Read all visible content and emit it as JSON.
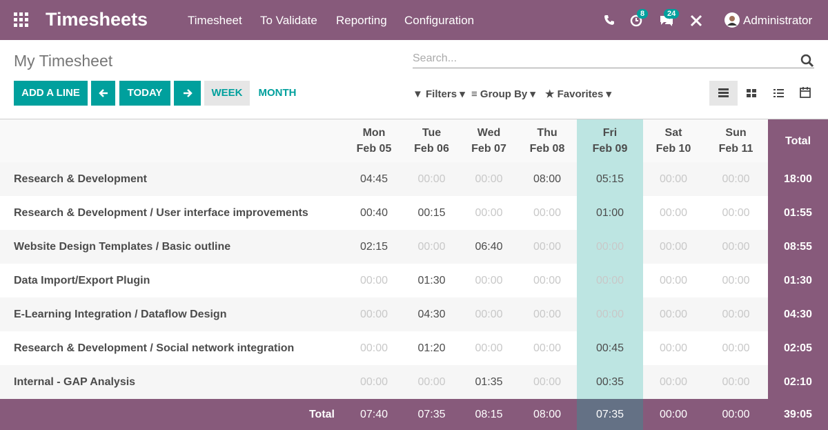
{
  "navbar": {
    "app": "Timesheets",
    "menu": [
      "Timesheet",
      "To Validate",
      "Reporting",
      "Configuration"
    ],
    "badges": [
      "8",
      "24"
    ],
    "user": "Administrator"
  },
  "control_panel": {
    "title": "My Timesheet",
    "search_placeholder": "Search...",
    "buttons": [
      "ADD A LINE",
      "TODAY",
      "WEEK",
      "MONTH"
    ],
    "filters": [
      "Filters",
      "Group By",
      "Favorites"
    ]
  },
  "table": {
    "columns": [
      {
        "day": "Mon",
        "date": "Feb 05"
      },
      {
        "day": "Tue",
        "date": "Feb 06"
      },
      {
        "day": "Wed",
        "date": "Feb 07"
      },
      {
        "day": "Thu",
        "date": "Feb 08"
      },
      {
        "day": "Fri",
        "date": "Feb 09"
      },
      {
        "day": "Sat",
        "date": "Feb 10"
      },
      {
        "day": "Sun",
        "date": "Feb 11"
      }
    ],
    "total_label": "Total",
    "rows": [
      {
        "label": "Research & Development",
        "cells": [
          "04:45",
          "00:00",
          "00:00",
          "08:00",
          "05:15",
          "00:00",
          "00:00"
        ],
        "total": "18:00"
      },
      {
        "label": "Research & Development /  User interface improvements",
        "cells": [
          "00:40",
          "00:15",
          "00:00",
          "00:00",
          "01:00",
          "00:00",
          "00:00"
        ],
        "total": "01:55"
      },
      {
        "label": "Website Design Templates /  Basic outline",
        "cells": [
          "02:15",
          "00:00",
          "06:40",
          "00:00",
          "00:00",
          "00:00",
          "00:00"
        ],
        "total": "08:55"
      },
      {
        "label": "Data Import/Export Plugin",
        "cells": [
          "00:00",
          "01:30",
          "00:00",
          "00:00",
          "00:00",
          "00:00",
          "00:00"
        ],
        "total": "01:30"
      },
      {
        "label": "E-Learning Integration /  Dataflow Design",
        "cells": [
          "00:00",
          "04:30",
          "00:00",
          "00:00",
          "00:00",
          "00:00",
          "00:00"
        ],
        "total": "04:30"
      },
      {
        "label": "Research & Development /  Social network integration",
        "cells": [
          "00:00",
          "01:20",
          "00:00",
          "00:00",
          "00:45",
          "00:00",
          "00:00"
        ],
        "total": "02:05"
      },
      {
        "label": "Internal - GAP Analysis",
        "cells": [
          "00:00",
          "00:00",
          "01:35",
          "00:00",
          "00:35",
          "00:00",
          "00:00"
        ],
        "total": "02:10"
      }
    ],
    "footer": {
      "label": "Total",
      "cells": [
        "07:40",
        "07:35",
        "08:15",
        "08:00",
        "07:35",
        "00:00",
        "00:00"
      ],
      "total": "39:05"
    }
  }
}
